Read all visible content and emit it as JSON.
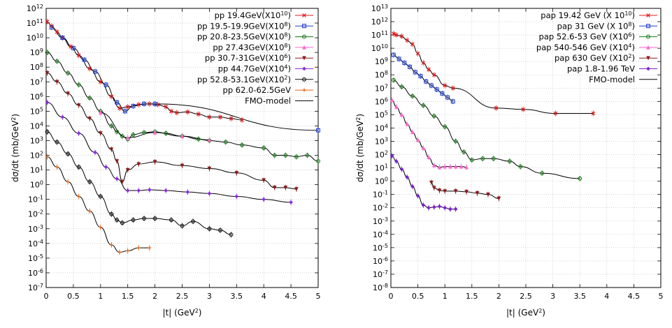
{
  "chart_data": [
    {
      "type": "line",
      "xlabel": "|t| (GeV2)",
      "ylabel": "dσ/dt (mb/GeV2)",
      "y_scale": "log",
      "xlim": [
        0,
        5
      ],
      "ylim_exp": [
        -7,
        12
      ],
      "x_ticks": [
        "0",
        "0.5",
        "1",
        "1.5",
        "2",
        "2.5",
        "3",
        "3.5",
        "4",
        "4.5",
        "5"
      ],
      "y_ticks": [
        "10-7",
        "10-6",
        "10-5",
        "10-4",
        "10-3",
        "10-2",
        "10-1",
        "100",
        "101",
        "102",
        "103",
        "104",
        "105",
        "106",
        "107",
        "108",
        "109",
        "1010",
        "1011",
        "1012"
      ],
      "grid": true,
      "legend_position": "top-right",
      "model_curve": "FMO-model",
      "series": [
        {
          "name": "pp 19.4GeV(X1010)",
          "color": "#e41a1c",
          "marker": "x",
          "data": [
            [
              0.02,
              11.1
            ],
            [
              0.1,
              10.8
            ],
            [
              0.2,
              10.4
            ],
            [
              0.3,
              10.0
            ],
            [
              0.45,
              9.4
            ],
            [
              0.6,
              8.8
            ],
            [
              0.8,
              7.9
            ],
            [
              1.0,
              7.0
            ],
            [
              1.2,
              6.0
            ],
            [
              1.35,
              5.2
            ],
            [
              1.5,
              5.3
            ],
            [
              1.7,
              5.45
            ],
            [
              1.9,
              5.5
            ],
            [
              2.05,
              5.45
            ],
            [
              2.2,
              5.3
            ],
            [
              2.3,
              5.0
            ],
            [
              2.4,
              4.9
            ],
            [
              2.6,
              4.95
            ],
            [
              2.8,
              4.8
            ],
            [
              3.0,
              4.6
            ],
            [
              3.2,
              4.6
            ],
            [
              3.4,
              4.5
            ],
            [
              3.6,
              4.4
            ]
          ]
        },
        {
          "name": "pp 19.5-19.9GeV(X108)",
          "color": "#1f3fd0",
          "marker": "square",
          "data": [
            [
              0.1,
              10.7
            ],
            [
              0.3,
              10.0
            ],
            [
              0.5,
              9.3
            ],
            [
              0.7,
              8.5
            ],
            [
              0.9,
              7.7
            ],
            [
              1.1,
              6.8
            ],
            [
              1.3,
              5.6
            ],
            [
              1.45,
              5.0
            ],
            [
              1.6,
              5.35
            ],
            [
              1.8,
              5.5
            ],
            [
              2.0,
              5.5
            ],
            [
              5.0,
              3.7
            ]
          ]
        },
        {
          "name": "pp 20.8-23.5GeV(X108)",
          "color": "#1a7a1a",
          "marker": "circle",
          "data": [
            [
              0.02,
              9.0
            ],
            [
              0.2,
              8.4
            ],
            [
              0.4,
              7.6
            ],
            [
              0.6,
              6.8
            ],
            [
              0.8,
              5.9
            ],
            [
              1.0,
              5.0
            ],
            [
              1.2,
              4.0
            ],
            [
              1.3,
              3.6
            ],
            [
              1.4,
              3.3
            ],
            [
              1.5,
              3.1
            ],
            [
              1.6,
              3.4
            ],
            [
              1.8,
              3.55
            ],
            [
              2.0,
              3.6
            ],
            [
              2.2,
              3.5
            ],
            [
              2.5,
              3.3
            ],
            [
              2.8,
              3.1
            ],
            [
              3.0,
              3.0
            ],
            [
              3.3,
              2.9
            ],
            [
              3.6,
              2.7
            ],
            [
              4.0,
              2.5
            ],
            [
              4.2,
              2.0
            ],
            [
              4.4,
              2.0
            ],
            [
              4.6,
              1.9
            ],
            [
              4.8,
              2.0
            ],
            [
              5.0,
              1.6
            ]
          ]
        },
        {
          "name": "pp 27.43GeV(X108)",
          "color": "#ff66cc",
          "marker": "triangle",
          "data": [
            [
              1.0,
              4.9
            ],
            [
              1.5,
              3.2
            ],
            [
              2.0,
              3.55
            ],
            [
              2.5,
              3.3
            ],
            [
              3.0,
              3.05
            ]
          ]
        },
        {
          "name": "pp 30.7-31GeV(X106)",
          "color": "#8b1a1a",
          "marker": "triangle-down",
          "data": [
            [
              0.02,
              7.6
            ],
            [
              0.2,
              7.0
            ],
            [
              0.4,
              6.2
            ],
            [
              0.6,
              5.4
            ],
            [
              0.8,
              4.5
            ],
            [
              1.0,
              3.5
            ],
            [
              1.2,
              2.4
            ],
            [
              1.3,
              1.6
            ],
            [
              1.4,
              0.2
            ],
            [
              1.5,
              1.0
            ],
            [
              1.7,
              1.4
            ],
            [
              2.0,
              1.55
            ],
            [
              2.5,
              1.3
            ],
            [
              3.0,
              1.1
            ],
            [
              3.5,
              0.8
            ],
            [
              4.0,
              0.3
            ],
            [
              4.2,
              -0.2
            ],
            [
              4.4,
              -0.2
            ],
            [
              4.6,
              -0.3
            ]
          ]
        },
        {
          "name": "pp 44.7GeV(X104)",
          "color": "#8a2be2",
          "marker": "diamond",
          "data": [
            [
              0.02,
              5.6
            ],
            [
              0.3,
              4.6
            ],
            [
              0.6,
              3.5
            ],
            [
              0.9,
              2.2
            ],
            [
              1.1,
              1.2
            ],
            [
              1.3,
              0.4
            ],
            [
              1.5,
              -0.4
            ],
            [
              1.7,
              -0.4
            ],
            [
              1.9,
              -0.35
            ],
            [
              2.2,
              -0.4
            ],
            [
              2.6,
              -0.5
            ],
            [
              3.0,
              -0.6
            ],
            [
              3.5,
              -0.8
            ],
            [
              4.0,
              -1.0
            ],
            [
              4.5,
              -1.2
            ]
          ]
        },
        {
          "name": "pp 52.8-53.1GeV(X102)",
          "color": "#111111",
          "marker": "circle",
          "data": [
            [
              0.02,
              3.6
            ],
            [
              0.2,
              2.9
            ],
            [
              0.4,
              2.1
            ],
            [
              0.6,
              1.2
            ],
            [
              0.8,
              0.2
            ],
            [
              1.0,
              -0.8
            ],
            [
              1.2,
              -2.0
            ],
            [
              1.3,
              -2.4
            ],
            [
              1.4,
              -2.6
            ],
            [
              1.6,
              -2.4
            ],
            [
              1.8,
              -2.3
            ],
            [
              2.0,
              -2.3
            ],
            [
              2.3,
              -2.4
            ],
            [
              2.5,
              -2.8
            ],
            [
              2.7,
              -2.5
            ],
            [
              3.0,
              -3.0
            ],
            [
              3.2,
              -3.1
            ],
            [
              3.4,
              -3.4
            ]
          ]
        },
        {
          "name": "pp 62.0-62.5GeV",
          "color": "#e06010",
          "marker": "plus",
          "data": [
            [
              0.02,
              1.9
            ],
            [
              0.2,
              1.2
            ],
            [
              0.4,
              0.2
            ],
            [
              0.6,
              -0.8
            ],
            [
              0.8,
              -1.8
            ],
            [
              1.0,
              -2.9
            ],
            [
              1.2,
              -4.1
            ],
            [
              1.35,
              -4.6
            ],
            [
              1.5,
              -4.5
            ],
            [
              1.7,
              -4.3
            ],
            [
              1.9,
              -4.3
            ]
          ]
        }
      ]
    },
    {
      "type": "line",
      "xlabel": "|t| (GeV2)",
      "ylabel": "dσ/dt (mb/GeV2)",
      "y_scale": "log",
      "xlim": [
        0,
        5
      ],
      "ylim_exp": [
        -8,
        13
      ],
      "x_ticks": [
        "0",
        "0.5",
        "1",
        "1.5",
        "2",
        "2.5",
        "3",
        "3.5",
        "4",
        "4.5",
        "5"
      ],
      "y_ticks": [
        "10-8",
        "10-7",
        "10-6",
        "10-5",
        "10-4",
        "10-3",
        "10-2",
        "10-1",
        "100",
        "101",
        "102",
        "103",
        "104",
        "105",
        "106",
        "107",
        "108",
        "109",
        "1010",
        "1011",
        "1012",
        "1013"
      ],
      "grid": true,
      "legend_position": "top-right",
      "model_curve": "FMO-model",
      "series": [
        {
          "name": "pap 19.42 GeV (X 1010)",
          "color": "#e41a1c",
          "marker": "x",
          "data": [
            [
              0.05,
              11.1
            ],
            [
              0.1,
              11.0
            ],
            [
              0.2,
              10.9
            ],
            [
              0.3,
              10.6
            ],
            [
              0.4,
              10.3
            ],
            [
              0.5,
              9.6
            ],
            [
              0.6,
              8.9
            ],
            [
              0.7,
              8.4
            ],
            [
              0.8,
              8.0
            ],
            [
              1.0,
              7.2
            ],
            [
              1.15,
              7.0
            ],
            [
              1.95,
              5.5
            ],
            [
              2.45,
              5.4
            ],
            [
              3.05,
              5.1
            ],
            [
              3.75,
              5.1
            ]
          ]
        },
        {
          "name": "pap 31 GeV (X 108)",
          "color": "#1f3fd0",
          "marker": "square",
          "data": [
            [
              0.05,
              9.5
            ],
            [
              0.15,
              9.2
            ],
            [
              0.25,
              8.9
            ],
            [
              0.35,
              8.6
            ],
            [
              0.45,
              8.2
            ],
            [
              0.55,
              7.9
            ],
            [
              0.65,
              7.5
            ],
            [
              0.75,
              7.2
            ],
            [
              0.85,
              6.9
            ],
            [
              0.95,
              6.6
            ],
            [
              1.05,
              6.3
            ],
            [
              1.15,
              6.0
            ]
          ]
        },
        {
          "name": "pap 52.6-53 GeV (X106)",
          "color": "#1a7a1a",
          "marker": "circle",
          "data": [
            [
              0.05,
              7.6
            ],
            [
              0.2,
              7.1
            ],
            [
              0.4,
              6.4
            ],
            [
              0.6,
              5.7
            ],
            [
              0.8,
              4.9
            ],
            [
              1.0,
              4.1
            ],
            [
              1.2,
              3.0
            ],
            [
              1.35,
              2.2
            ],
            [
              1.5,
              1.6
            ],
            [
              1.7,
              1.7
            ],
            [
              1.9,
              1.7
            ],
            [
              2.2,
              1.5
            ],
            [
              2.4,
              1.1
            ],
            [
              2.8,
              0.6
            ],
            [
              3.5,
              0.2
            ]
          ]
        },
        {
          "name": "pap 540-546 GeV (X104)",
          "color": "#ff66cc",
          "marker": "triangle",
          "data": [
            [
              0.02,
              6.1
            ],
            [
              0.1,
              5.6
            ],
            [
              0.2,
              5.0
            ],
            [
              0.3,
              4.3
            ],
            [
              0.4,
              3.7
            ],
            [
              0.5,
              3.1
            ],
            [
              0.6,
              2.5
            ],
            [
              0.7,
              1.8
            ],
            [
              0.8,
              1.2
            ],
            [
              0.9,
              1.05
            ],
            [
              1.0,
              1.1
            ],
            [
              1.1,
              1.1
            ],
            [
              1.2,
              1.1
            ],
            [
              1.3,
              1.1
            ],
            [
              1.4,
              1.05
            ]
          ]
        },
        {
          "name": "pap 630 GeV (X102)",
          "color": "#8b1a1a",
          "marker": "triangle-down",
          "data": [
            [
              0.75,
              -0.1
            ],
            [
              0.8,
              -0.5
            ],
            [
              0.9,
              -0.7
            ],
            [
              1.0,
              -0.75
            ],
            [
              1.2,
              -0.75
            ],
            [
              1.4,
              -0.8
            ],
            [
              1.6,
              -0.9
            ],
            [
              1.8,
              -1.0
            ],
            [
              2.0,
              -1.3
            ]
          ]
        },
        {
          "name": "pap 1.8-1.96 TeV",
          "color": "#7a1fd0",
          "marker": "diamond",
          "data": [
            [
              0.02,
              1.9
            ],
            [
              0.1,
              1.5
            ],
            [
              0.2,
              0.9
            ],
            [
              0.3,
              0.3
            ],
            [
              0.4,
              -0.4
            ],
            [
              0.5,
              -1.1
            ],
            [
              0.6,
              -1.8
            ],
            [
              0.7,
              -2.0
            ],
            [
              0.8,
              -1.95
            ],
            [
              0.9,
              -1.9
            ],
            [
              1.0,
              -2.0
            ],
            [
              1.1,
              -2.1
            ],
            [
              1.2,
              -2.1
            ]
          ]
        }
      ]
    }
  ]
}
